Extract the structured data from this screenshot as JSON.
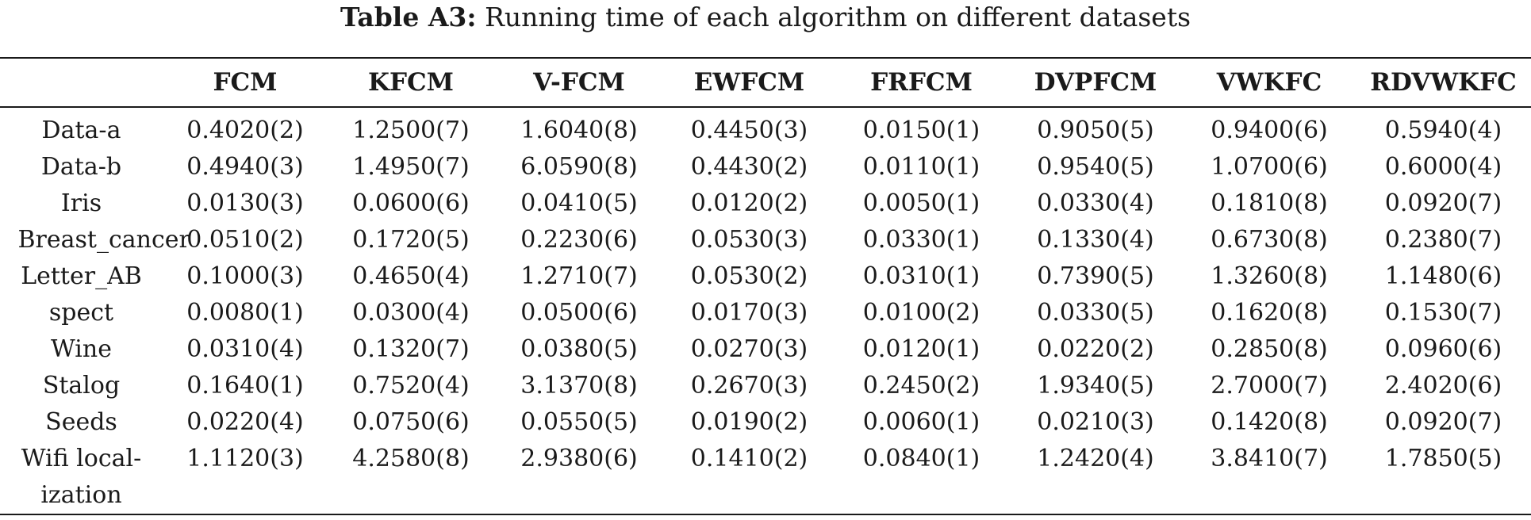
{
  "caption": {
    "label": "Table A3:",
    "text": " Running time of each algorithm on different datasets"
  },
  "columns": [
    "",
    "FCM",
    "KFCM",
    "V-FCM",
    "EWFCM",
    "FRFCM",
    "DVPFCM",
    "VWKFC",
    "RDVWKFC"
  ],
  "rows": [
    {
      "name": "Data-a",
      "values": [
        "0.4020(2)",
        "1.2500(7)",
        "1.6040(8)",
        "0.4450(3)",
        "0.0150(1)",
        "0.9050(5)",
        "0.9400(6)",
        "0.5940(4)"
      ]
    },
    {
      "name": "Data-b",
      "values": [
        "0.4940(3)",
        "1.4950(7)",
        "6.0590(8)",
        "0.4430(2)",
        "0.0110(1)",
        "0.9540(5)",
        "1.0700(6)",
        "0.6000(4)"
      ]
    },
    {
      "name": "Iris",
      "values": [
        "0.0130(3)",
        "0.0600(6)",
        "0.0410(5)",
        "0.0120(2)",
        "0.0050(1)",
        "0.0330(4)",
        "0.1810(8)",
        "0.0920(7)"
      ]
    },
    {
      "name": "Breast_cancer",
      "values": [
        "0.0510(2)",
        "0.1720(5)",
        "0.2230(6)",
        "0.0530(3)",
        "0.0330(1)",
        "0.1330(4)",
        "0.6730(8)",
        "0.2380(7)"
      ]
    },
    {
      "name": "Letter_AB",
      "values": [
        "0.1000(3)",
        "0.4650(4)",
        "1.2710(7)",
        "0.0530(2)",
        "0.0310(1)",
        "0.7390(5)",
        "1.3260(8)",
        "1.1480(6)"
      ]
    },
    {
      "name": "spect",
      "values": [
        "0.0080(1)",
        "0.0300(4)",
        "0.0500(6)",
        "0.0170(3)",
        "0.0100(2)",
        "0.0330(5)",
        "0.1620(8)",
        "0.1530(7)"
      ]
    },
    {
      "name": "Wine",
      "values": [
        "0.0310(4)",
        "0.1320(7)",
        "0.0380(5)",
        "0.0270(3)",
        "0.0120(1)",
        "0.0220(2)",
        "0.2850(8)",
        "0.0960(6)"
      ]
    },
    {
      "name": "Stalog",
      "values": [
        "0.1640(1)",
        "0.7520(4)",
        "3.1370(8)",
        "0.2670(3)",
        "0.2450(2)",
        "1.9340(5)",
        "2.7000(7)",
        "2.4020(6)"
      ]
    },
    {
      "name": "Seeds",
      "values": [
        "0.0220(4)",
        "0.0750(6)",
        "0.0550(5)",
        "0.0190(2)",
        "0.0060(1)",
        "0.0210(3)",
        "0.1420(8)",
        "0.0920(7)"
      ]
    },
    {
      "name": "Wifi local-ization",
      "values": [
        "1.1120(3)",
        "4.2580(8)",
        "2.9380(6)",
        "0.1410(2)",
        "0.0840(1)",
        "1.2420(4)",
        "3.8410(7)",
        "1.7850(5)"
      ]
    }
  ]
}
